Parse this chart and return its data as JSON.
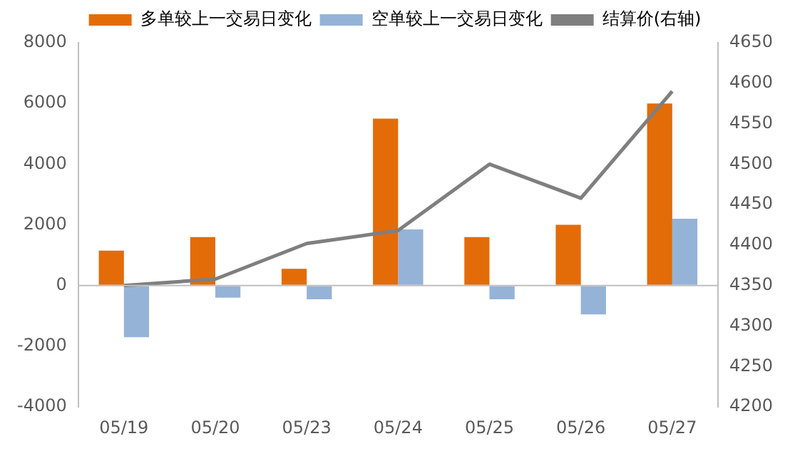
{
  "chart_data": {
    "type": "bar",
    "categories": [
      "05/19",
      "05/20",
      "05/23",
      "05/24",
      "05/25",
      "05/26",
      "05/27"
    ],
    "series": [
      {
        "name": "多单较上一交易日变化",
        "color": "#e36c09",
        "values": [
          1150,
          1600,
          550,
          5500,
          1600,
          2000,
          6000
        ]
      },
      {
        "name": "空单较上一交易日变化",
        "color": "#95b3d7",
        "values": [
          -1700,
          -400,
          -450,
          1850,
          -450,
          -950,
          2200
        ]
      },
      {
        "name": "结算价(右轴)",
        "type": "line",
        "axis": "y2",
        "color": "#7f7f7f",
        "values": [
          4350,
          4358,
          4402,
          4418,
          4500,
          4458,
          4590
        ]
      }
    ],
    "ylim": [
      -4000,
      8000
    ],
    "yticks": [
      -4000,
      -2000,
      0,
      2000,
      4000,
      6000,
      8000
    ],
    "y2lim": [
      4200,
      4650
    ],
    "y2ticks": [
      4200,
      4250,
      4300,
      4350,
      4400,
      4450,
      4500,
      4550,
      4600,
      4650
    ],
    "ref_lines": [
      {
        "axis": "y",
        "value": 0,
        "color": "#bfbfbf"
      }
    ],
    "grid": false,
    "legend": "top",
    "marker": "none"
  }
}
